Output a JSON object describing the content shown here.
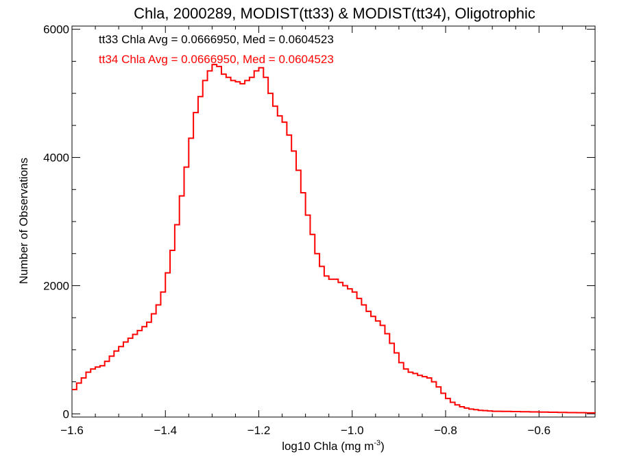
{
  "chart_data": {
    "type": "line",
    "step": true,
    "title": "Chla, 2000289, MODIST(tt33) & MODIST(tt34), Oligotrophic",
    "xlabel": "log10 Chla (mg m",
    "xlabel_sup": "-3",
    "xlabel_tail": ")",
    "ylabel": "Number of Observations",
    "xlim": [
      -1.6,
      -0.48
    ],
    "ylim": [
      -50,
      6050
    ],
    "x_ticks": [
      {
        "value": -1.6,
        "label": "−1.6"
      },
      {
        "value": -1.4,
        "label": "−1.4"
      },
      {
        "value": -1.2,
        "label": "−1.2"
      },
      {
        "value": -1.0,
        "label": "−1.0"
      },
      {
        "value": -0.8,
        "label": "−0.8"
      },
      {
        "value": -0.6,
        "label": "−0.6"
      }
    ],
    "y_ticks": [
      {
        "value": 0,
        "label": "0"
      },
      {
        "value": 2000,
        "label": "2000"
      },
      {
        "value": 4000,
        "label": "4000"
      },
      {
        "value": 6000,
        "label": "6000"
      }
    ],
    "annotations": [
      {
        "text": "tt33 Chla Avg = 0.0666950, Med = 0.0604523",
        "color": "#000000"
      },
      {
        "text": "tt34 Chla Avg = 0.0666950, Med = 0.0604523",
        "color": "#ff0000"
      }
    ],
    "series": [
      {
        "color": "#ff0000",
        "x": [
          -1.6,
          -1.59,
          -1.58,
          -1.57,
          -1.56,
          -1.55,
          -1.54,
          -1.53,
          -1.52,
          -1.51,
          -1.5,
          -1.49,
          -1.48,
          -1.47,
          -1.46,
          -1.45,
          -1.44,
          -1.43,
          -1.42,
          -1.41,
          -1.4,
          -1.39,
          -1.38,
          -1.37,
          -1.36,
          -1.35,
          -1.34,
          -1.33,
          -1.32,
          -1.31,
          -1.3,
          -1.29,
          -1.28,
          -1.27,
          -1.26,
          -1.25,
          -1.24,
          -1.23,
          -1.22,
          -1.21,
          -1.2,
          -1.19,
          -1.18,
          -1.17,
          -1.16,
          -1.15,
          -1.14,
          -1.13,
          -1.12,
          -1.11,
          -1.1,
          -1.09,
          -1.08,
          -1.07,
          -1.06,
          -1.05,
          -1.04,
          -1.03,
          -1.02,
          -1.01,
          -1.0,
          -0.99,
          -0.98,
          -0.97,
          -0.96,
          -0.95,
          -0.94,
          -0.93,
          -0.92,
          -0.91,
          -0.9,
          -0.89,
          -0.88,
          -0.87,
          -0.86,
          -0.85,
          -0.84,
          -0.83,
          -0.82,
          -0.81,
          -0.8,
          -0.79,
          -0.78,
          -0.77,
          -0.76,
          -0.75,
          -0.74,
          -0.73,
          -0.72,
          -0.71,
          -0.7,
          -0.68,
          -0.66,
          -0.64,
          -0.62,
          -0.6,
          -0.58,
          -0.56,
          -0.54,
          -0.52,
          -0.5,
          -0.48
        ],
        "y": [
          380,
          480,
          560,
          650,
          700,
          730,
          750,
          820,
          900,
          980,
          1050,
          1120,
          1180,
          1240,
          1300,
          1360,
          1430,
          1560,
          1700,
          1900,
          2200,
          2550,
          2950,
          3400,
          3850,
          4300,
          4700,
          4950,
          5200,
          5350,
          5450,
          5420,
          5300,
          5250,
          5200,
          5180,
          5150,
          5200,
          5250,
          5350,
          5400,
          5250,
          5000,
          4800,
          4650,
          4550,
          4350,
          4100,
          3800,
          3450,
          3100,
          2800,
          2500,
          2300,
          2150,
          2100,
          2100,
          2050,
          2000,
          1950,
          1900,
          1800,
          1700,
          1600,
          1520,
          1450,
          1380,
          1250,
          1100,
          950,
          800,
          700,
          650,
          630,
          600,
          580,
          560,
          500,
          420,
          320,
          240,
          180,
          140,
          110,
          90,
          75,
          65,
          55,
          50,
          45,
          40,
          38,
          35,
          33,
          30,
          28,
          25,
          22,
          20,
          18,
          15,
          12
        ]
      }
    ]
  }
}
